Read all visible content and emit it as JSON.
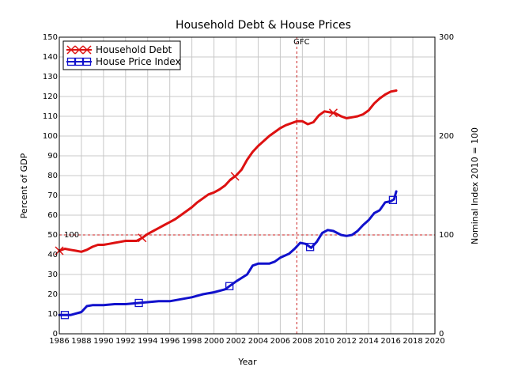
{
  "chart_data": {
    "type": "line",
    "title": "Household Debt & House Prices",
    "xlabel": "Year",
    "ylabel": "Percent of GDP",
    "y2label": "Nominal Index 2010 = 100",
    "xlim": [
      1986,
      2020
    ],
    "ylim": [
      0,
      150
    ],
    "y2lim": [
      0,
      300
    ],
    "x_ticks": [
      1986,
      1988,
      1990,
      1992,
      1994,
      1996,
      1998,
      2000,
      2002,
      2004,
      2006,
      2008,
      2010,
      2012,
      2014,
      2016,
      2018,
      2020
    ],
    "y_ticks": [
      0,
      10,
      20,
      30,
      40,
      50,
      60,
      70,
      80,
      90,
      100,
      110,
      120,
      130,
      140,
      150
    ],
    "y2_ticks": [
      0,
      100,
      200,
      300
    ],
    "grid": true,
    "legend_position": "top-left",
    "annotations": {
      "gfc_label": "GFC",
      "gfc_x": 2007.5,
      "ref_label": "100",
      "ref_y2": 100
    },
    "series": [
      {
        "name": "Household Debt",
        "axis": "left",
        "color": "#dd1111",
        "marker": "x",
        "markers_at": [
          1986,
          1993.5,
          2001.9,
          2010.8
        ],
        "points": [
          [
            1986,
            42
          ],
          [
            1986.5,
            43
          ],
          [
            1987,
            42.5
          ],
          [
            1987.5,
            42
          ],
          [
            1988,
            41.5
          ],
          [
            1988.5,
            42.5
          ],
          [
            1989,
            44
          ],
          [
            1989.5,
            45
          ],
          [
            1990,
            45
          ],
          [
            1990.5,
            45.5
          ],
          [
            1991,
            46
          ],
          [
            1991.5,
            46.5
          ],
          [
            1992,
            47
          ],
          [
            1992.5,
            47
          ],
          [
            1993,
            47
          ],
          [
            1993.5,
            48.5
          ],
          [
            1994,
            50.5
          ],
          [
            1994.5,
            52
          ],
          [
            1995,
            53.5
          ],
          [
            1995.5,
            55
          ],
          [
            1996,
            56.5
          ],
          [
            1996.5,
            58
          ],
          [
            1997,
            60
          ],
          [
            1997.5,
            62
          ],
          [
            1998,
            64
          ],
          [
            1998.5,
            66.5
          ],
          [
            1999,
            68.5
          ],
          [
            1999.5,
            70.5
          ],
          [
            2000,
            71.5
          ],
          [
            2000.5,
            73
          ],
          [
            2001,
            75
          ],
          [
            2001.5,
            78
          ],
          [
            2002,
            80
          ],
          [
            2002.5,
            83
          ],
          [
            2003,
            88
          ],
          [
            2003.5,
            92
          ],
          [
            2004,
            95
          ],
          [
            2004.5,
            97.5
          ],
          [
            2005,
            100
          ],
          [
            2005.5,
            102
          ],
          [
            2006,
            104
          ],
          [
            2006.5,
            105.5
          ],
          [
            2007,
            106.5
          ],
          [
            2007.5,
            107.5
          ],
          [
            2008,
            107.5
          ],
          [
            2008.5,
            106
          ],
          [
            2009,
            107
          ],
          [
            2009.5,
            110.5
          ],
          [
            2010,
            112.5
          ],
          [
            2010.5,
            112
          ],
          [
            2011,
            111.5
          ],
          [
            2011.5,
            110
          ],
          [
            2012,
            109
          ],
          [
            2012.5,
            109.5
          ],
          [
            2013,
            110
          ],
          [
            2013.5,
            111
          ],
          [
            2014,
            113
          ],
          [
            2014.5,
            116.5
          ],
          [
            2015,
            119
          ],
          [
            2015.5,
            121
          ],
          [
            2016,
            122.5
          ],
          [
            2016.5,
            123
          ]
        ]
      },
      {
        "name": "House Price Index",
        "axis": "right",
        "color": "#1111cc",
        "marker": "square",
        "markers_at": [
          1986.5,
          1993.2,
          2001.4,
          2008.7,
          2016.2
        ],
        "points": [
          [
            1986,
            19
          ],
          [
            1987,
            19
          ],
          [
            1988,
            22
          ],
          [
            1988.5,
            28
          ],
          [
            1989,
            29
          ],
          [
            1990,
            29
          ],
          [
            1991,
            30
          ],
          [
            1992,
            30
          ],
          [
            1993,
            31
          ],
          [
            1994,
            32
          ],
          [
            1995,
            33
          ],
          [
            1996,
            33
          ],
          [
            1997,
            35
          ],
          [
            1998,
            37
          ],
          [
            1999,
            40
          ],
          [
            2000,
            42
          ],
          [
            2001,
            45
          ],
          [
            2002,
            53
          ],
          [
            2003,
            60
          ],
          [
            2003.5,
            69
          ],
          [
            2004,
            71
          ],
          [
            2005,
            71
          ],
          [
            2005.5,
            73
          ],
          [
            2006,
            77
          ],
          [
            2006.8,
            81
          ],
          [
            2007.3,
            86
          ],
          [
            2007.8,
            92
          ],
          [
            2008.3,
            91
          ],
          [
            2008.8,
            87
          ],
          [
            2009.3,
            93
          ],
          [
            2009.8,
            102
          ],
          [
            2010.3,
            105
          ],
          [
            2010.8,
            104
          ],
          [
            2011.5,
            100
          ],
          [
            2012,
            99
          ],
          [
            2012.5,
            100
          ],
          [
            2013,
            104
          ],
          [
            2013.5,
            110
          ],
          [
            2014,
            115
          ],
          [
            2014.5,
            122
          ],
          [
            2015,
            125
          ],
          [
            2015.5,
            133
          ],
          [
            2016,
            134
          ],
          [
            2016.3,
            136
          ],
          [
            2016.5,
            144
          ]
        ]
      }
    ]
  }
}
